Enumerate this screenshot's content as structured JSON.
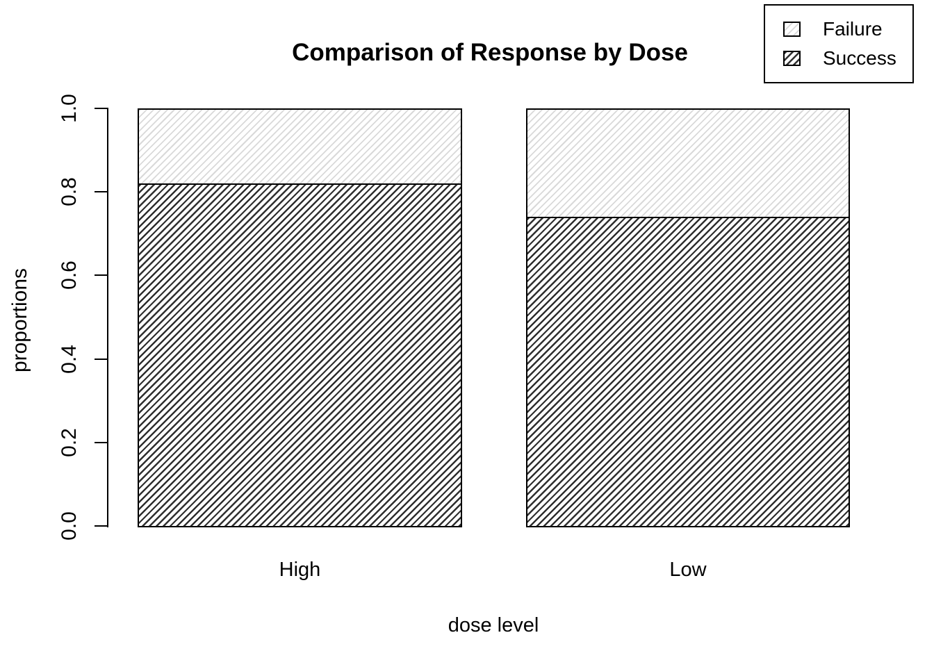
{
  "chart_data": {
    "type": "bar",
    "subtype": "stacked-proportions",
    "title": "Comparison of Response by Dose",
    "xlabel": "dose level",
    "ylabel": "proportions",
    "categories": [
      "High",
      "Low"
    ],
    "series": [
      {
        "name": "Success",
        "values": [
          0.82,
          0.74
        ]
      },
      {
        "name": "Failure",
        "values": [
          0.18,
          0.26
        ]
      }
    ],
    "stack_order_bottom_to_top": [
      "Success",
      "Failure"
    ],
    "ylim": [
      0.0,
      1.0
    ],
    "yticks": [
      "0.0",
      "0.2",
      "0.4",
      "0.6",
      "0.8",
      "1.0"
    ],
    "grid": false,
    "legend": {
      "position": "top-right",
      "entries": [
        "Failure",
        "Success"
      ]
    }
  },
  "colors": {
    "background": "#ffffff",
    "axis": "#000000",
    "text": "#000000",
    "bar_border": "#000000",
    "failure_hatch_line": "#d9d9d9",
    "success_hatch_line": "#2e2e2e"
  }
}
